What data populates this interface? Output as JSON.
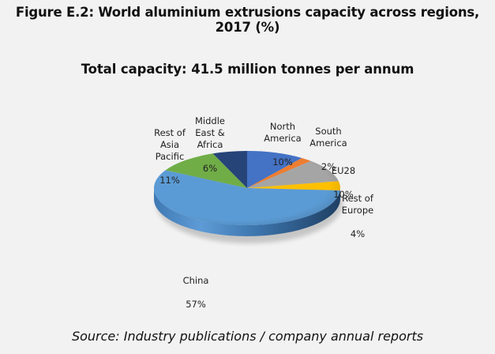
{
  "figure": {
    "title": "Figure E.2: World aluminium extrusions capacity across regions, 2017 (%)",
    "source": "Source: Industry publications / company annual reports"
  },
  "chart_data": {
    "type": "pie",
    "style": "3d",
    "title": "Total capacity: 41.5 million tonnes per annum",
    "unit": "%",
    "categories": [
      "North America",
      "South America",
      "EU28",
      "Rest of Europe",
      "China",
      "Rest of Asia Pacific",
      "Middle East & Africa"
    ],
    "values": [
      10,
      2,
      10,
      4,
      57,
      11,
      6
    ],
    "colors": [
      "#4472c4",
      "#ed7d31",
      "#a5a5a5",
      "#ffc000",
      "#5b9bd5",
      "#70ad47",
      "#264478"
    ],
    "labels": [
      {
        "name": "North\nAmerica",
        "value": "10%"
      },
      {
        "name": "South\nAmerica",
        "value": "2%"
      },
      {
        "name": "EU28",
        "value": "10%"
      },
      {
        "name": "Rest of\nEurope",
        "value": "4%"
      },
      {
        "name": "China",
        "value": "57%"
      },
      {
        "name": "Rest of\nAsia\nPacific",
        "value": "11%"
      },
      {
        "name": "Middle\nEast &\nAfrica",
        "value": "6%"
      }
    ],
    "legend": "none (data labels on slices)"
  }
}
